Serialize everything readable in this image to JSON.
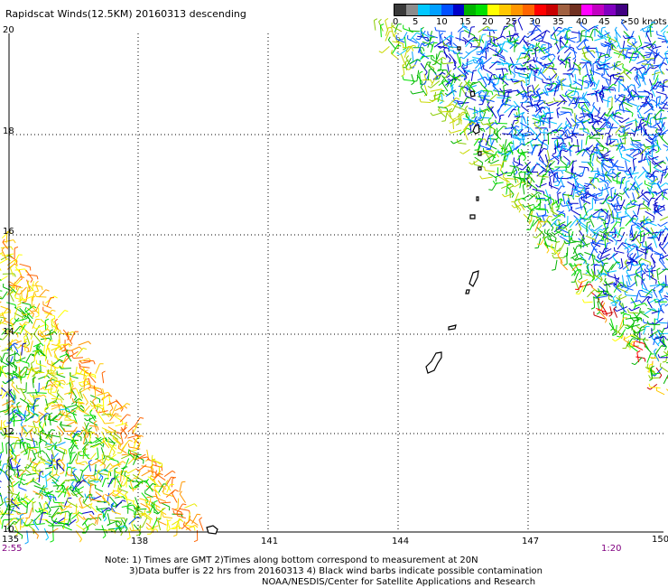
{
  "title": "Rapidscat Winds(12.5KM) 20160313 descending",
  "colorbar": {
    "colors": [
      "#3a3a3a",
      "#8c8c8c",
      "#00c8ff",
      "#00a0ff",
      "#0050ff",
      "#0000c8",
      "#00b400",
      "#00e000",
      "#ffff00",
      "#ffc800",
      "#ff9600",
      "#ff6400",
      "#ff0000",
      "#c80000",
      "#a06040",
      "#703020",
      "#ff00ff",
      "#c000c0",
      "#8000c0",
      "#400080"
    ],
    "labels": [
      "0",
      "5",
      "10",
      "15",
      "20",
      "25",
      "30",
      "35",
      "40",
      "45",
      ">50 knots"
    ]
  },
  "map": {
    "lat_labels": [
      "20",
      "18",
      "16",
      "14",
      "12",
      "10"
    ],
    "lon_labels": [
      "135",
      "138",
      "141",
      "144",
      "147",
      "150"
    ],
    "time_left": "2:55",
    "time_right": "1:20"
  },
  "notes": {
    "line1": "Note: 1) Times are GMT 2)Times along bottom correspond to measurement at 20N",
    "line2": "3)Data buffer is 22 hrs from 20160313 4) Black wind barbs indicate possible contamination",
    "line3": "NOAA/NESDIS/Center for Satellite Applications and Research"
  }
}
